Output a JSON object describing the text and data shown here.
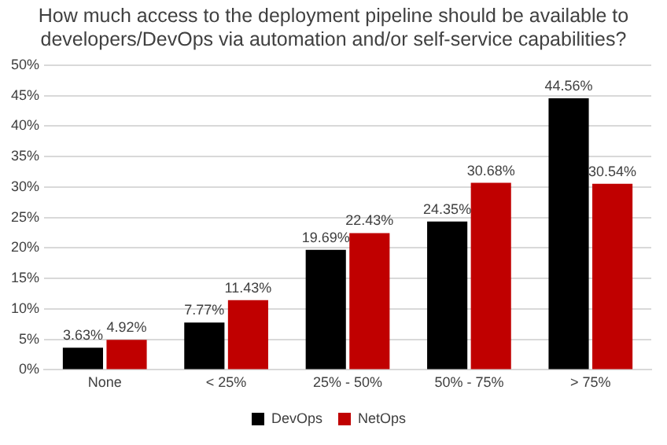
{
  "chart_data": {
    "type": "bar",
    "title": "How much access to the deployment pipeline should be available to developers/DevOps via automation and/or self-service capabilities?",
    "categories": [
      "None",
      "< 25%",
      "25% - 50%",
      "50% - 75%",
      "> 75%"
    ],
    "series": [
      {
        "name": "DevOps",
        "color": "#000000",
        "values": [
          3.63,
          7.77,
          19.69,
          24.35,
          44.56
        ],
        "value_labels": [
          "3.63%",
          "7.77%",
          "19.69%",
          "24.35%",
          "44.56%"
        ]
      },
      {
        "name": "NetOps",
        "color": "#c00000",
        "values": [
          4.92,
          11.43,
          22.43,
          30.68,
          30.54
        ],
        "value_labels": [
          "4.92%",
          "11.43%",
          "22.43%",
          "30.68%",
          "30.54%"
        ]
      }
    ],
    "ylim": [
      0,
      50
    ],
    "yticks": [
      {
        "value": 0,
        "label": "0%"
      },
      {
        "value": 5,
        "label": "5%"
      },
      {
        "value": 10,
        "label": "10%"
      },
      {
        "value": 15,
        "label": "15%"
      },
      {
        "value": 20,
        "label": "20%"
      },
      {
        "value": 25,
        "label": "25%"
      },
      {
        "value": 30,
        "label": "30%"
      },
      {
        "value": 35,
        "label": "35%"
      },
      {
        "value": 40,
        "label": "40%"
      },
      {
        "value": 45,
        "label": "45%"
      },
      {
        "value": 50,
        "label": "50%"
      }
    ],
    "grid": "y",
    "legend": "bottom"
  }
}
